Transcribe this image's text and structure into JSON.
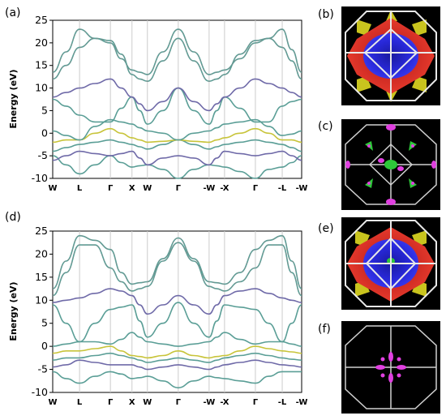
{
  "panel_labels": {
    "a": "(a)",
    "b": "(b)",
    "c": "(c)",
    "d": "(d)",
    "e": "(e)",
    "f": "(f)"
  },
  "colors": {
    "band_main": "#5a9e96",
    "band_alt": "#6f6aa8",
    "band_yellow": "#c8c43a",
    "band_dash": "#888888",
    "fermi_red": "#e8322a",
    "fermi_blue": "#2424d8",
    "fermi_yellow": "#c9c41e",
    "fermi_green": "#2ec83a",
    "fermi_magenta": "#e040e0",
    "bz_edge": "#e8e8e8",
    "panel_bg": "#000000",
    "grid": "#cccccc"
  },
  "chart_data": [
    {
      "type": "line",
      "panel": "(a)",
      "ylabel": "Energy (eV)",
      "ylim": [
        -10,
        25
      ],
      "yticks": [
        -10,
        -5,
        0,
        5,
        10,
        15,
        20,
        25
      ],
      "kpath_labels": [
        "W",
        "L",
        "Γ",
        "X",
        "W",
        "Γ",
        "-W",
        "-X",
        "Γ",
        "-L",
        "-W"
      ],
      "kpath_positions": [
        0,
        0.87,
        1.87,
        2.57,
        3.07,
        4.07,
        5.07,
        5.57,
        6.57,
        7.44,
        8.07
      ],
      "x": [
        0,
        0.435,
        0.87,
        1.37,
        1.87,
        2.22,
        2.57,
        2.82,
        3.07,
        3.57,
        4.07,
        4.57,
        5.07,
        5.32,
        5.57,
        6.07,
        6.57,
        7.0,
        7.44,
        7.75,
        8.07
      ],
      "series": [
        {
          "values": [
            -5.0,
            -7.0,
            -9.0,
            -7.0,
            -5.0,
            -6.5,
            -7.5,
            -7.2,
            -7.0,
            -8.0,
            -10.0,
            -8.0,
            -7.0,
            -7.2,
            -7.5,
            -8.5,
            -10.0,
            -8.0,
            -7.5,
            -6.5,
            -5.0
          ]
        },
        {
          "values": [
            -6.0,
            -5.0,
            -4.0,
            -4.5,
            -5.0,
            -4.5,
            -4.0,
            -5.5,
            -7.0,
            -5.5,
            -5.0,
            -5.5,
            -7.0,
            -5.5,
            -4.0,
            -4.5,
            -5.0,
            -4.5,
            -4.0,
            -5.0,
            -6.0
          ]
        },
        {
          "values": [
            -4.0,
            -3.2,
            -2.5,
            -2.0,
            -1.5,
            -2.0,
            -2.5,
            -3.0,
            -3.5,
            -2.5,
            -1.5,
            -2.5,
            -3.5,
            -3.0,
            -2.5,
            -2.0,
            -1.5,
            -2.0,
            -2.5,
            -3.2,
            -4.0
          ]
        },
        {
          "values": [
            -2.0,
            -1.5,
            -1.5,
            0.0,
            1.0,
            0.0,
            -1.0,
            -1.5,
            -2.0,
            -1.8,
            -1.5,
            -1.8,
            -2.0,
            -1.5,
            -1.0,
            0.0,
            1.0,
            0.0,
            -1.5,
            -1.5,
            -2.0
          ]
        },
        {
          "values": [
            0.5,
            -0.5,
            -1.5,
            1.5,
            3.0,
            2.5,
            2.0,
            1.2,
            0.5,
            0.0,
            -1.5,
            0.0,
            0.5,
            1.2,
            2.0,
            2.5,
            3.0,
            1.5,
            -0.5,
            -0.2,
            0.5
          ]
        },
        {
          "values": [
            7.5,
            6.0,
            4.0,
            2.5,
            2.5,
            5.5,
            8.0,
            5.0,
            2.0,
            5.0,
            10.0,
            5.0,
            2.0,
            5.0,
            8.0,
            5.5,
            2.5,
            2.5,
            6.0,
            7.0,
            7.5
          ]
        },
        {
          "values": [
            8.0,
            9.0,
            10.0,
            11.0,
            12.0,
            10.0,
            8.0,
            6.5,
            5.0,
            7.0,
            10.0,
            7.0,
            5.0,
            6.5,
            8.0,
            10.0,
            12.0,
            11.0,
            10.0,
            9.0,
            8.0
          ]
        },
        {
          "values": [
            12.0,
            15.0,
            19.0,
            21.0,
            20.5,
            17.5,
            13.0,
            12.0,
            11.5,
            16.0,
            21.0,
            16.0,
            11.5,
            12.0,
            13.0,
            17.5,
            20.5,
            21.0,
            19.0,
            16.0,
            12.0
          ]
        },
        {
          "values": [
            13.5,
            18.0,
            23.0,
            21.0,
            20.0,
            16.5,
            14.0,
            13.5,
            13.0,
            18.0,
            23.0,
            18.0,
            13.0,
            13.5,
            14.0,
            16.5,
            20.0,
            21.0,
            23.0,
            18.5,
            13.5
          ]
        }
      ]
    },
    {
      "type": "line",
      "panel": "(d)",
      "ylabel": "Energy (eV)",
      "ylim": [
        -10,
        25
      ],
      "yticks": [
        -10,
        -5,
        0,
        5,
        10,
        15,
        20,
        25
      ],
      "kpath_labels": [
        "W",
        "L",
        "Γ",
        "X",
        "W",
        "Γ",
        "-W",
        "-X",
        "Γ",
        "-L",
        "-W"
      ],
      "kpath_positions": [
        0,
        0.87,
        1.87,
        2.57,
        3.07,
        4.07,
        5.07,
        5.57,
        6.57,
        7.44,
        8.07
      ],
      "x": [
        0,
        0.435,
        0.87,
        1.37,
        1.87,
        2.22,
        2.57,
        2.82,
        3.07,
        3.57,
        4.07,
        4.57,
        5.07,
        5.32,
        5.57,
        6.07,
        6.57,
        7.0,
        7.44,
        7.75,
        8.07
      ],
      "series": [
        {
          "values": [
            -5.5,
            -7.0,
            -8.0,
            -6.5,
            -5.5,
            -6.0,
            -7.0,
            -6.8,
            -6.5,
            -7.5,
            -9.0,
            -7.5,
            -6.5,
            -6.8,
            -7.0,
            -7.5,
            -8.0,
            -6.5,
            -5.5,
            -5.5,
            -5.5
          ]
        },
        {
          "values": [
            -4.5,
            -4.0,
            -3.0,
            -3.5,
            -4.0,
            -4.0,
            -4.0,
            -4.5,
            -5.0,
            -4.5,
            -4.0,
            -4.5,
            -5.0,
            -4.5,
            -4.0,
            -3.5,
            -3.0,
            -3.5,
            -4.0,
            -4.2,
            -4.5
          ]
        },
        {
          "values": [
            -3.0,
            -2.5,
            -2.5,
            -2.0,
            -1.5,
            -2.0,
            -2.5,
            -3.0,
            -3.5,
            -3.0,
            -2.5,
            -3.0,
            -3.5,
            -3.0,
            -2.5,
            -2.0,
            -1.5,
            -2.0,
            -2.5,
            -2.8,
            -3.0
          ]
        },
        {
          "values": [
            -1.5,
            -1.0,
            -1.0,
            -0.5,
            0.0,
            -1.0,
            -2.0,
            -2.2,
            -2.5,
            -2.0,
            -1.0,
            -2.0,
            -2.5,
            -2.2,
            -2.0,
            -1.0,
            0.0,
            -0.5,
            -1.0,
            -1.2,
            -1.5
          ]
        },
        {
          "values": [
            0.0,
            0.5,
            1.0,
            1.0,
            0.5,
            1.5,
            3.0,
            2.0,
            1.0,
            0.5,
            0.0,
            0.5,
            1.0,
            2.0,
            3.0,
            1.5,
            0.5,
            1.0,
            1.0,
            0.5,
            0.0
          ]
        },
        {
          "values": [
            9.0,
            5.0,
            1.0,
            5.0,
            8.0,
            8.5,
            9.0,
            5.5,
            2.0,
            5.0,
            9.5,
            5.0,
            2.0,
            5.5,
            9.0,
            8.5,
            8.0,
            5.0,
            1.0,
            5.0,
            9.0
          ]
        },
        {
          "values": [
            9.5,
            10.0,
            10.5,
            11.5,
            12.5,
            12.0,
            11.0,
            9.0,
            7.0,
            9.0,
            11.0,
            9.0,
            7.0,
            9.0,
            11.0,
            12.0,
            12.5,
            11.5,
            10.5,
            10.0,
            9.5
          ]
        },
        {
          "values": [
            11.0,
            16.0,
            22.0,
            22.0,
            17.0,
            14.0,
            12.0,
            12.5,
            13.0,
            18.5,
            22.5,
            18.5,
            13.0,
            12.5,
            12.0,
            14.0,
            17.0,
            22.0,
            22.0,
            16.0,
            11.0
          ]
        },
        {
          "values": [
            12.5,
            18.5,
            24.0,
            23.0,
            21.0,
            16.0,
            13.5,
            13.8,
            14.0,
            19.0,
            23.5,
            19.0,
            14.0,
            13.8,
            13.5,
            16.0,
            21.0,
            23.0,
            24.0,
            18.5,
            12.5
          ]
        }
      ]
    }
  ]
}
